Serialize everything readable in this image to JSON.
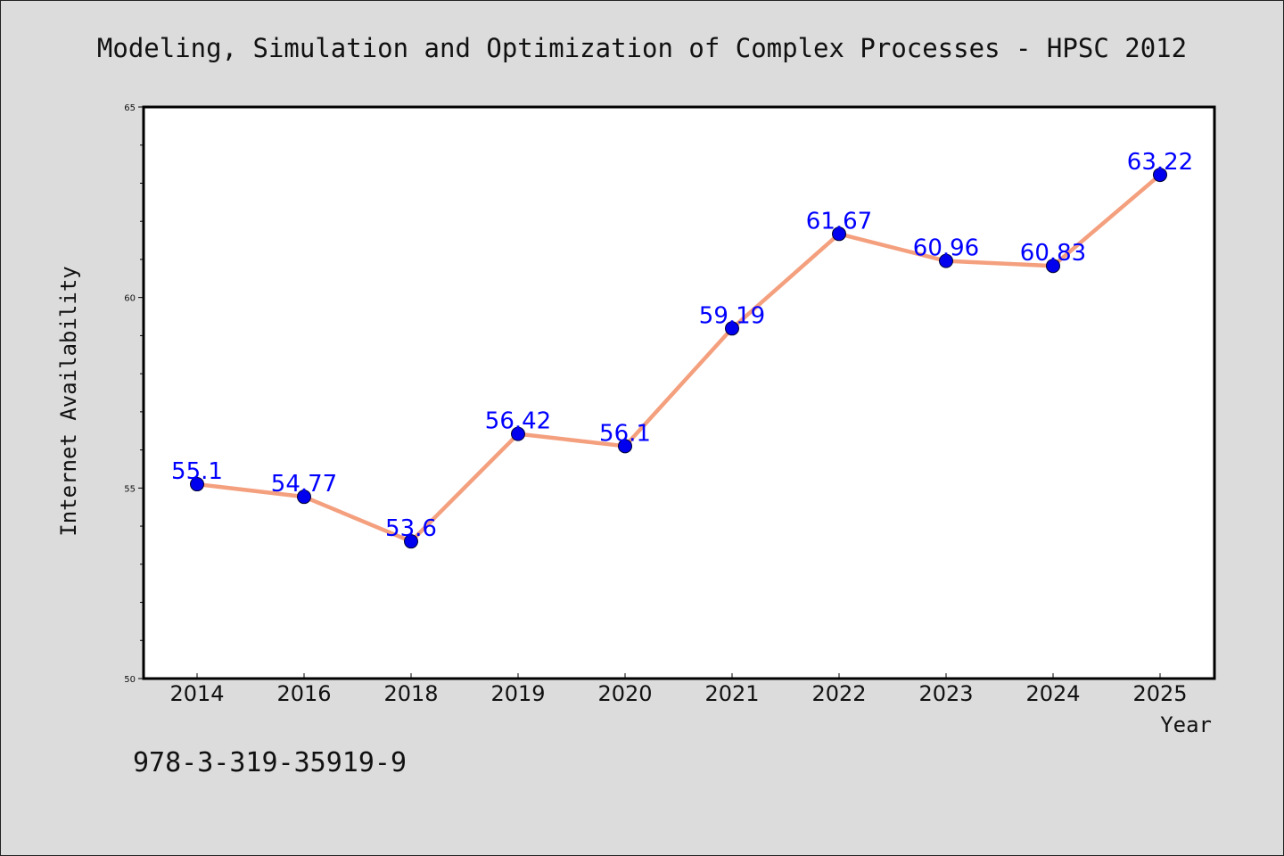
{
  "chart_data": {
    "type": "line",
    "title": "Modeling, Simulation and Optimization of Complex Processes - HPSC 2012",
    "xlabel": "Year",
    "ylabel": "Internet Availability",
    "categories": [
      "2014",
      "2016",
      "2018",
      "2019",
      "2020",
      "2021",
      "2022",
      "2023",
      "2024",
      "2025"
    ],
    "series": [
      {
        "values": [
          55.1,
          54.77,
          53.6,
          56.42,
          56.1,
          59.19,
          61.67,
          60.96,
          60.83,
          63.22
        ]
      }
    ],
    "data_labels": [
      "55.1",
      "54.77",
      "53.6",
      "56.42",
      "56.1",
      "59.19",
      "61.67",
      "60.96",
      "60.83",
      "63.22"
    ],
    "ylim": [
      50,
      65
    ],
    "yticks": [
      "50",
      "55",
      "60",
      "65"
    ],
    "grid": false,
    "line_color": "#f4a07e",
    "marker_color": "#0000ee",
    "label_color": "#0000ff",
    "annotation": "978-3-319-35919-9"
  }
}
